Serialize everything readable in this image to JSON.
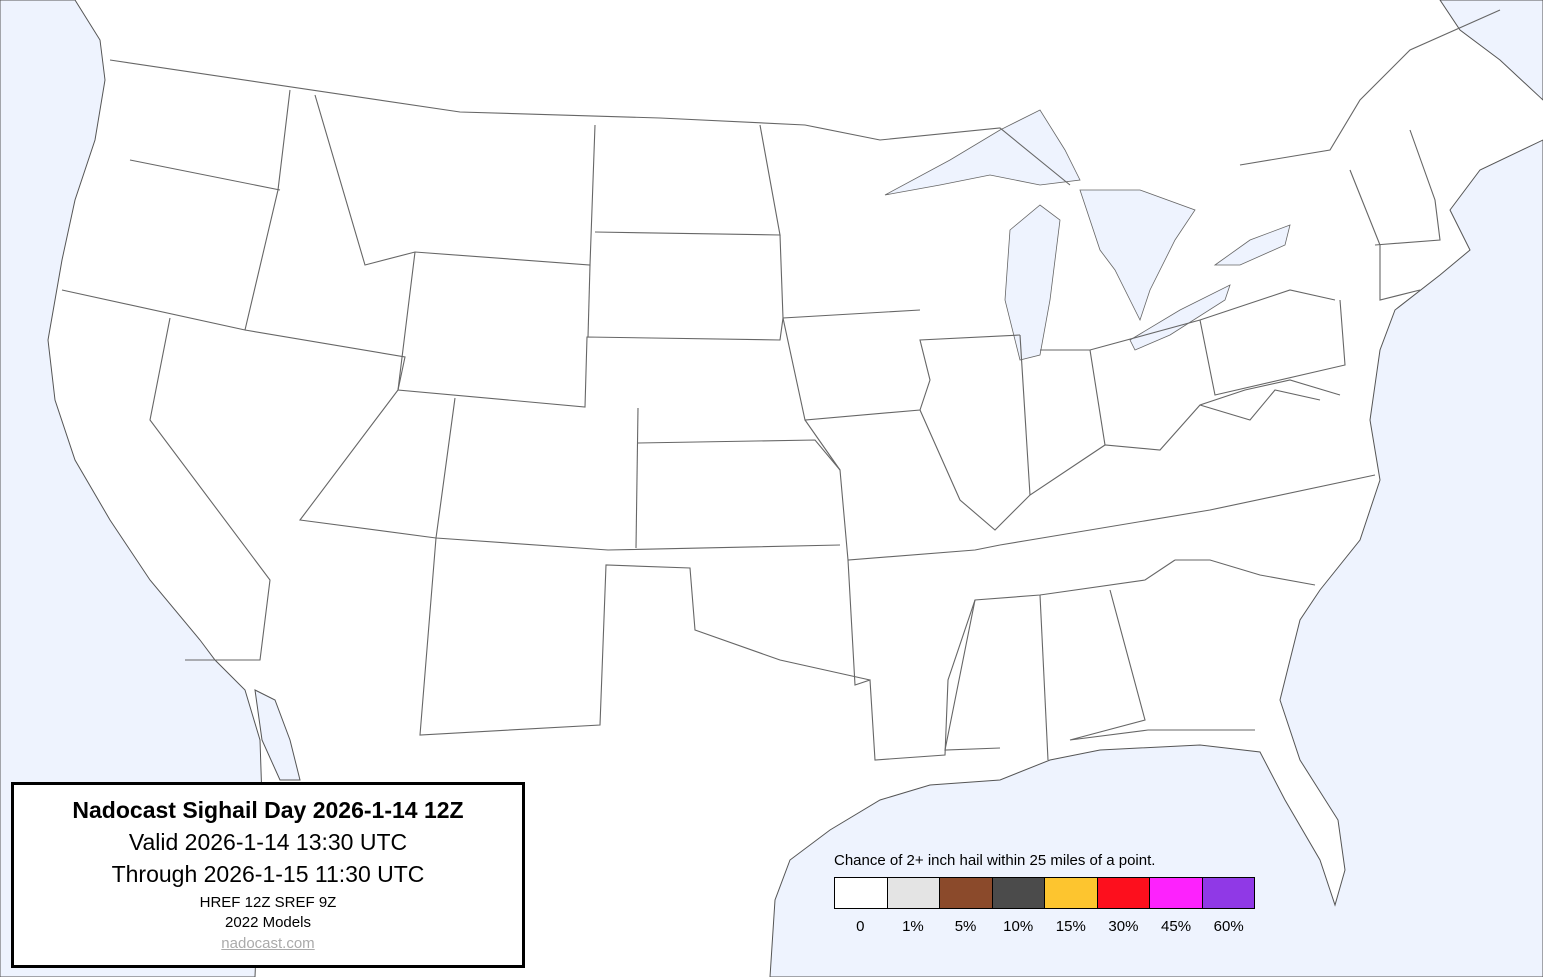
{
  "title_box": {
    "title": "Nadocast Sighail Day 2026-1-14 12Z",
    "valid": "Valid 2026-1-14 13:30 UTC",
    "through": "Through 2026-1-15 11:30 UTC",
    "models": "HREF 12Z SREF 9Z",
    "model_version": "2022 Models",
    "site": "nadocast.com"
  },
  "legend": {
    "title": "Chance of 2+ inch hail within 25 miles of a point.",
    "bins": [
      {
        "label": "0",
        "color": "#ffffff"
      },
      {
        "label": "1%",
        "color": "#e4e4e4"
      },
      {
        "label": "5%",
        "color": "#8b4a2b"
      },
      {
        "label": "10%",
        "color": "#4b4b4b"
      },
      {
        "label": "15%",
        "color": "#fdc52f"
      },
      {
        "label": "30%",
        "color": "#fd0f1d"
      },
      {
        "label": "45%",
        "color": "#fd22fd"
      },
      {
        "label": "60%",
        "color": "#9039e6"
      }
    ]
  },
  "colors": {
    "water": "#eef3fe",
    "land": "#ffffff"
  }
}
